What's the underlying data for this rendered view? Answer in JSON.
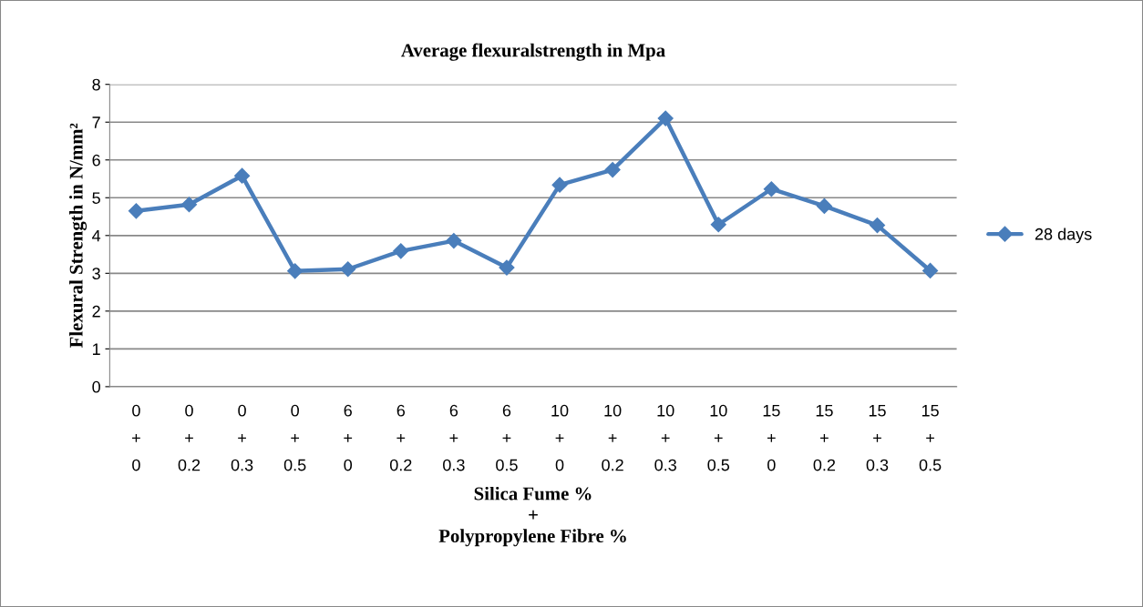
{
  "chart_data": {
    "type": "line",
    "title": "Average flexuralstrength in Mpa",
    "xlabel": "Silica Fume %\n+\nPolypropylene Fibre %",
    "ylabel": "Flexural Strength in N/mm²",
    "categories": [
      "0\n+\n0",
      "0\n+\n0.2",
      "0\n+\n0.3",
      "0\n+\n0.5",
      "6\n+\n0",
      "6\n+\n0.2",
      "6\n+\n0.3",
      "6\n+\n0.5",
      "10\n+\n0",
      "10\n+\n0.2",
      "10\n+\n0.3",
      "10\n+\n0.5",
      "15\n+\n0",
      "15\n+\n0.2",
      "15\n+\n0.3",
      "15\n+\n0.5"
    ],
    "series": [
      {
        "name": "28 days",
        "color": "#4a7ebb",
        "values": [
          4.65,
          4.82,
          5.58,
          3.06,
          3.11,
          3.59,
          3.86,
          3.15,
          5.34,
          5.74,
          7.1,
          4.29,
          5.23,
          4.78,
          4.27,
          3.07
        ]
      }
    ],
    "ylim": [
      0,
      8
    ],
    "yticks": [
      0,
      1,
      2,
      3,
      4,
      5,
      6,
      7,
      8
    ],
    "grid": "y",
    "legend": "right",
    "marker": "diamond",
    "line_style": "solid"
  }
}
